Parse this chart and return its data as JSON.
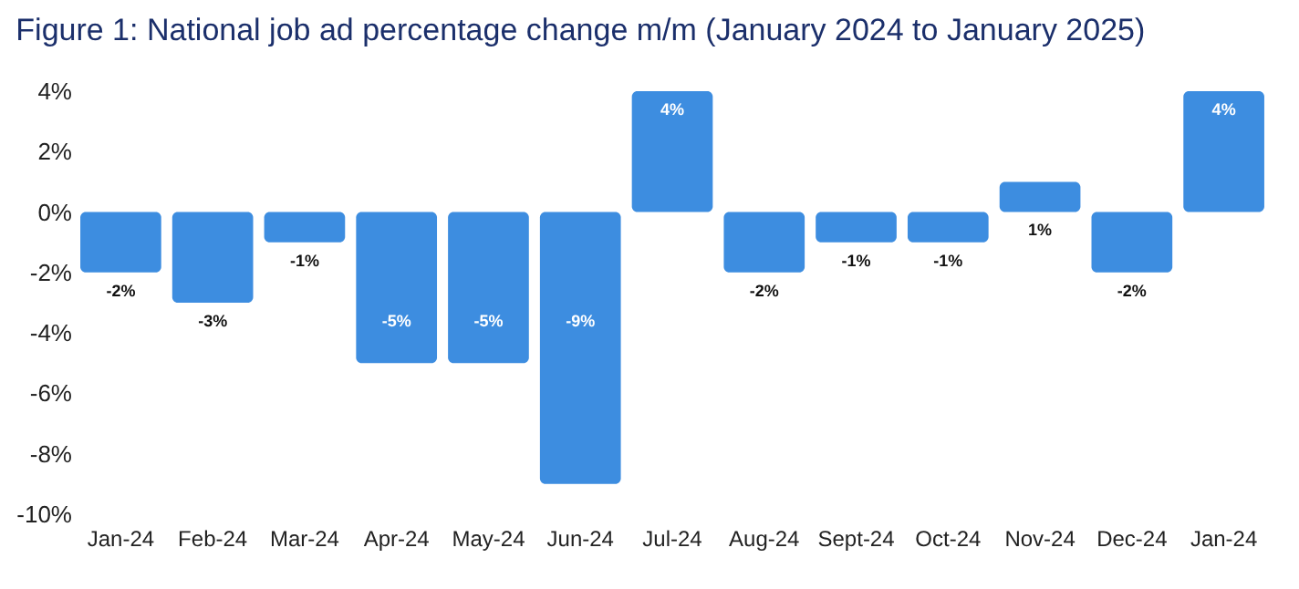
{
  "chart_data": {
    "type": "bar",
    "title": "Figure 1: National job ad percentage change m/m (January 2024 to January 2025)",
    "categories": [
      "Jan-24",
      "Feb-24",
      "Mar-24",
      "Apr-24",
      "May-24",
      "Jun-24",
      "Jul-24",
      "Aug-24",
      "Sept-24",
      "Oct-24",
      "Nov-24",
      "Dec-24",
      "Jan-24"
    ],
    "values": [
      -2,
      -3,
      -1,
      -5,
      -5,
      -9,
      4,
      -2,
      -1,
      -1,
      1,
      -2,
      4
    ],
    "value_labels": [
      "-2%",
      "-3%",
      "-1%",
      "-5%",
      "-5%",
      "-9%",
      "4%",
      "-2%",
      "-1%",
      "-1%",
      "1%",
      "-2%",
      "4%"
    ],
    "color": "#3d8de0",
    "ylim": [
      -10,
      4
    ],
    "yticks": [
      {
        "value": -10,
        "label": "-10%"
      },
      {
        "value": -8,
        "label": "-8%"
      },
      {
        "value": -6,
        "label": "-6%"
      },
      {
        "value": -4,
        "label": "-4%"
      },
      {
        "value": -2,
        "label": "-2%"
      },
      {
        "value": 0,
        "label": "0%"
      },
      {
        "value": 2,
        "label": "2%"
      },
      {
        "value": 4,
        "label": "4%"
      }
    ],
    "grid": false
  }
}
